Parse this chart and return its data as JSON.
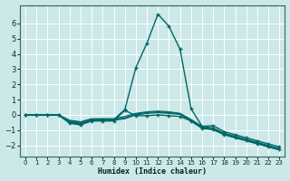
{
  "xlabel": "Humidex (Indice chaleur)",
  "background_color": "#cce8e8",
  "grid_color": "#ffffff",
  "line_color": "#006666",
  "xlim": [
    -0.5,
    23.5
  ],
  "ylim": [
    -2.7,
    7.2
  ],
  "yticks": [
    -2,
    -1,
    0,
    1,
    2,
    3,
    4,
    5,
    6
  ],
  "xticks": [
    0,
    1,
    2,
    3,
    4,
    5,
    6,
    7,
    8,
    9,
    10,
    11,
    12,
    13,
    14,
    15,
    16,
    17,
    18,
    19,
    20,
    21,
    22,
    23
  ],
  "series": [
    {
      "x": [
        0,
        1,
        2,
        3,
        4,
        5,
        6,
        7,
        8,
        9,
        10,
        11,
        12,
        13,
        14,
        15,
        16,
        17,
        18,
        19,
        20,
        21,
        22,
        23
      ],
      "y": [
        0,
        0,
        0,
        0,
        -0.5,
        -0.6,
        -0.35,
        -0.3,
        -0.3,
        0.35,
        3.1,
        4.7,
        6.6,
        5.8,
        4.3,
        0.4,
        -0.75,
        -0.7,
        -1.1,
        -1.3,
        -1.5,
        -1.7,
        -1.9,
        -2.1
      ],
      "marker": true,
      "linewidth": 1.0
    },
    {
      "x": [
        0,
        1,
        2,
        3,
        4,
        5,
        6,
        7,
        8,
        9,
        10,
        11,
        12,
        13,
        14,
        15,
        16,
        17,
        18,
        19,
        20,
        21,
        22,
        23
      ],
      "y": [
        0,
        0,
        0,
        0,
        -0.35,
        -0.45,
        -0.25,
        -0.25,
        -0.25,
        -0.1,
        0.1,
        0.2,
        0.25,
        0.2,
        0.1,
        -0.3,
        -0.75,
        -0.85,
        -1.2,
        -1.4,
        -1.6,
        -1.8,
        -2.0,
        -2.2
      ],
      "marker": false,
      "linewidth": 0.9
    },
    {
      "x": [
        0,
        1,
        2,
        3,
        4,
        5,
        6,
        7,
        8,
        9,
        10,
        11,
        12,
        13,
        14,
        15,
        16,
        17,
        18,
        19,
        20,
        21,
        22,
        23
      ],
      "y": [
        0,
        0,
        0,
        0,
        -0.4,
        -0.5,
        -0.3,
        -0.3,
        -0.3,
        -0.2,
        0.05,
        0.15,
        0.2,
        0.15,
        0.08,
        -0.35,
        -0.82,
        -0.92,
        -1.25,
        -1.45,
        -1.65,
        -1.85,
        -2.05,
        -2.25
      ],
      "marker": false,
      "linewidth": 0.9
    },
    {
      "x": [
        0,
        1,
        2,
        3,
        4,
        5,
        6,
        7,
        8,
        9,
        10,
        11,
        12,
        13,
        14,
        15,
        16,
        17,
        18,
        19,
        20,
        21,
        22,
        23
      ],
      "y": [
        0,
        0,
        0,
        0,
        -0.45,
        -0.55,
        -0.35,
        -0.35,
        -0.35,
        -0.25,
        0.0,
        0.1,
        0.15,
        0.1,
        0.03,
        -0.4,
        -0.87,
        -0.97,
        -1.3,
        -1.5,
        -1.7,
        -1.9,
        -2.1,
        -2.3
      ],
      "marker": false,
      "linewidth": 0.9
    },
    {
      "x": [
        0,
        1,
        2,
        3,
        4,
        5,
        6,
        7,
        8,
        9,
        10,
        11,
        12,
        13,
        14,
        15,
        16,
        17,
        18,
        19,
        20,
        21,
        22,
        23
      ],
      "y": [
        0,
        0,
        0,
        0,
        -0.55,
        -0.65,
        -0.4,
        -0.4,
        -0.4,
        0.3,
        -0.05,
        -0.05,
        0.0,
        -0.05,
        -0.1,
        -0.4,
        -0.88,
        -0.95,
        -1.28,
        -1.48,
        -1.68,
        -1.88,
        -2.08,
        -2.28
      ],
      "marker": true,
      "linewidth": 1.0
    }
  ]
}
